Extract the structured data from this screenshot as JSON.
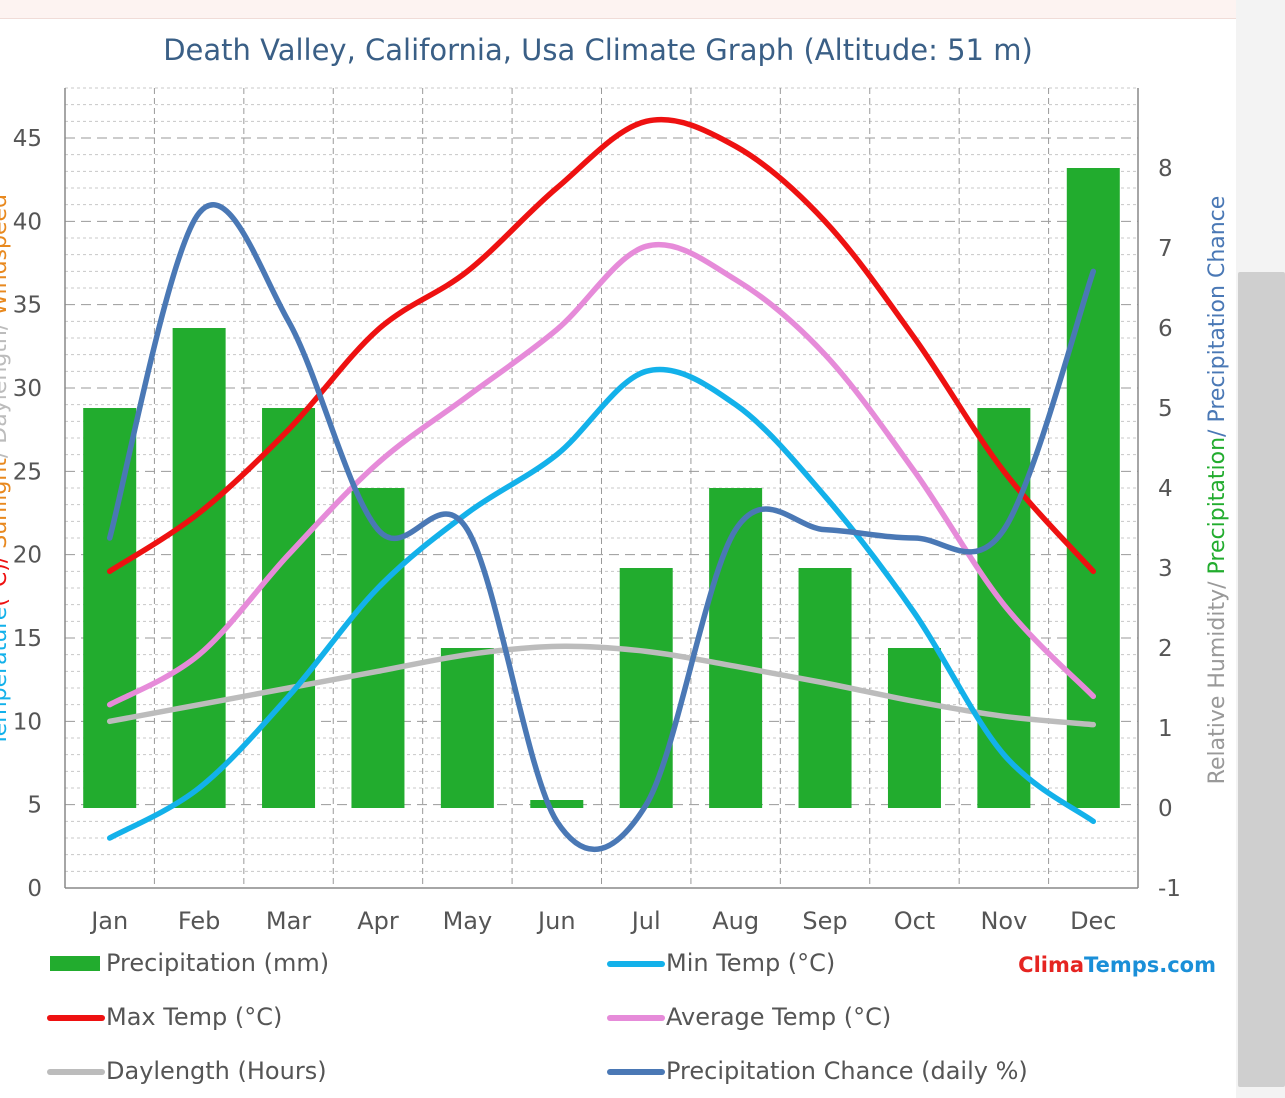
{
  "page": {
    "title": "Death Valley, California, Usa Climate Graph (Altitude: 51  m)"
  },
  "colors": {
    "precipitation": "#22ac2e",
    "max_temp": "#ee1111",
    "min_temp": "#13b1ea",
    "average_temp": "#e68bd9",
    "daylength": "#bcbcbc",
    "precip_chance": "#4a78b5",
    "title": "#3a5f86",
    "brand_red": "#e52421",
    "brand_blue": "#1a8fd8"
  },
  "legend": {
    "precipitation": "Precipitation (mm)",
    "min_temp": "Min Temp (°C)",
    "max_temp": "Max Temp (°C)",
    "average_temp": "Average Temp (°C)",
    "daylength": "Daylength (Hours)",
    "precip_chance": "Precipitation Chance (daily %)"
  },
  "brand": {
    "part1": "Clima",
    "part2": "Temps",
    "part3": ".com"
  },
  "axis_titles": {
    "left": [
      {
        "text": "Temperature",
        "color": "#13b1ea"
      },
      {
        "text": "(°C)/ ",
        "color": "#ee1111"
      },
      {
        "text": "Sunlight",
        "color": "#e8891f"
      },
      {
        "text": "/ Daylength/ ",
        "color": "#bcbcbc"
      },
      {
        "text": "Windspeed",
        "color": "#e8891f"
      }
    ],
    "right": [
      {
        "text": "Relative Humidity/ ",
        "color": "#999999"
      },
      {
        "text": "Precipitation",
        "color": "#22ac2e"
      },
      {
        "text": "/ Precipitation Chance",
        "color": "#4a78b5"
      }
    ]
  },
  "chart_data": {
    "type": "bar",
    "categories": [
      "Jan",
      "Feb",
      "Mar",
      "Apr",
      "May",
      "Jun",
      "Jul",
      "Aug",
      "Sep",
      "Oct",
      "Nov",
      "Dec"
    ],
    "left_axis": {
      "ylim": [
        0,
        48
      ],
      "ticks": [
        0,
        5,
        10,
        15,
        20,
        25,
        30,
        35,
        40,
        45
      ]
    },
    "right_axis": {
      "ylim": [
        -1,
        9
      ],
      "ticks": [
        -1,
        0,
        1,
        2,
        3,
        4,
        5,
        6,
        7,
        8
      ]
    },
    "grid": true,
    "legend_position": "bottom",
    "series": [
      {
        "key": "precipitation",
        "name": "Precipitation (mm)",
        "kind": "bar",
        "axis": "right",
        "values": [
          5,
          6,
          5,
          4,
          2,
          0.1,
          3,
          4,
          3,
          2,
          5,
          8
        ]
      },
      {
        "key": "max_temp",
        "name": "Max Temp (°C)",
        "kind": "line",
        "axis": "left",
        "values": [
          19,
          22.5,
          27.5,
          33.5,
          37,
          42,
          46,
          44.5,
          40,
          33,
          25,
          19
        ]
      },
      {
        "key": "min_temp",
        "name": "Min Temp (°C)",
        "kind": "line",
        "axis": "left",
        "values": [
          3,
          6,
          11.5,
          18,
          22.5,
          26,
          31,
          29,
          23.5,
          16.5,
          8,
          4
        ]
      },
      {
        "key": "average_temp",
        "name": "Average Temp (°C)",
        "kind": "line",
        "axis": "left",
        "values": [
          11,
          14,
          20,
          25.5,
          29.5,
          33.5,
          38.5,
          36.5,
          32,
          25,
          17,
          11.5
        ]
      },
      {
        "key": "daylength",
        "name": "Daylength (Hours)",
        "kind": "line",
        "axis": "left",
        "values": [
          10,
          11,
          12,
          13,
          14,
          14.5,
          14.2,
          13.3,
          12.3,
          11.2,
          10.3,
          9.8
        ]
      },
      {
        "key": "precip_chance",
        "name": "Precipitation Chance (daily %)",
        "kind": "line",
        "axis": "left",
        "values": [
          21,
          40.5,
          34,
          21.5,
          21.5,
          4,
          5,
          21.5,
          21.5,
          21,
          21.5,
          37
        ]
      }
    ]
  }
}
